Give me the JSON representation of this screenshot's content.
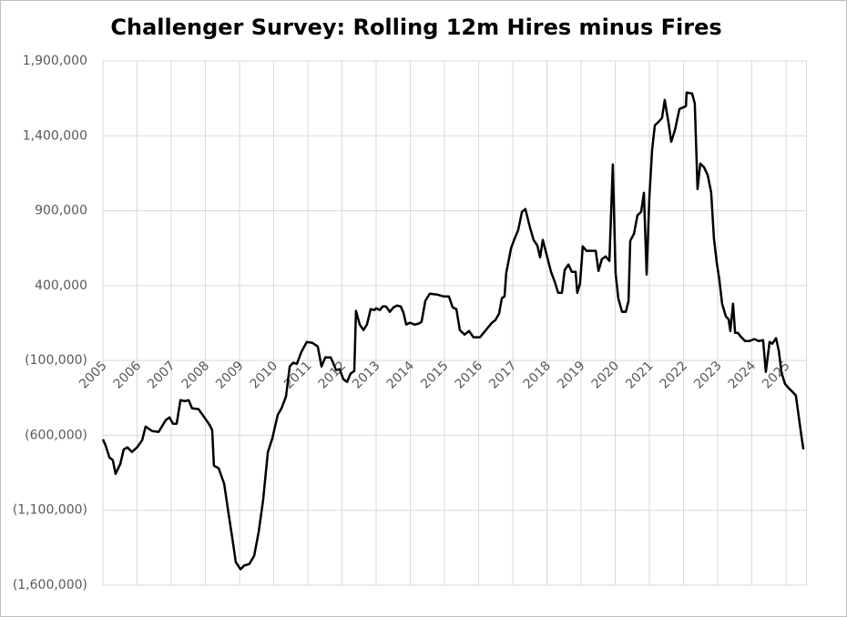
{
  "chart_data": {
    "type": "line",
    "title": "Challenger Survey: Rolling 12m Hires minus Fires",
    "x": [
      2005.0,
      2005.08,
      2005.19,
      2005.29,
      2005.37,
      2005.51,
      2005.61,
      2005.72,
      2005.85,
      2006.0,
      2006.15,
      2006.25,
      2006.44,
      2006.63,
      2006.84,
      2006.95,
      2007.05,
      2007.16,
      2007.27,
      2007.4,
      2007.51,
      2007.61,
      2007.8,
      2007.99,
      2008.12,
      2008.2,
      2008.25,
      2008.39,
      2008.55,
      2008.68,
      2008.79,
      2008.89,
      2009.03,
      2009.13,
      2009.29,
      2009.43,
      2009.56,
      2009.69,
      2009.83,
      2009.96,
      2010.12,
      2010.23,
      2010.36,
      2010.47,
      2010.57,
      2010.68,
      2010.81,
      2010.97,
      2011.13,
      2011.29,
      2011.4,
      2011.51,
      2011.67,
      2011.83,
      2011.93,
      2012.04,
      2012.15,
      2012.25,
      2012.36,
      2012.41,
      2012.52,
      2012.63,
      2012.73,
      2012.84,
      2012.95,
      2013.0,
      2013.11,
      2013.19,
      2013.29,
      2013.4,
      2013.51,
      2013.61,
      2013.72,
      2013.8,
      2013.88,
      2013.99,
      2014.13,
      2014.24,
      2014.33,
      2014.44,
      2014.57,
      2014.79,
      2014.97,
      2015.13,
      2015.24,
      2015.35,
      2015.45,
      2015.59,
      2015.72,
      2015.85,
      2016.04,
      2016.17,
      2016.28,
      2016.39,
      2016.49,
      2016.6,
      2016.68,
      2016.76,
      2016.81,
      2016.95,
      2017.05,
      2017.16,
      2017.27,
      2017.37,
      2017.51,
      2017.61,
      2017.72,
      2017.8,
      2017.88,
      2017.99,
      2018.12,
      2018.23,
      2018.33,
      2018.44,
      2018.52,
      2018.63,
      2018.73,
      2018.84,
      2018.89,
      2018.97,
      2019.05,
      2019.16,
      2019.32,
      2019.43,
      2019.51,
      2019.61,
      2019.72,
      2019.83,
      2019.93,
      2020.01,
      2020.09,
      2020.2,
      2020.31,
      2020.39,
      2020.44,
      2020.55,
      2020.65,
      2020.76,
      2020.84,
      2020.92,
      2021.0,
      2021.08,
      2021.16,
      2021.27,
      2021.37,
      2021.45,
      2021.56,
      2021.64,
      2021.75,
      2021.88,
      2022.07,
      2022.09,
      2022.25,
      2022.33,
      2022.41,
      2022.49,
      2022.6,
      2022.71,
      2022.81,
      2022.89,
      2022.97,
      2023.05,
      2023.13,
      2023.24,
      2023.32,
      2023.37,
      2023.45,
      2023.51,
      2023.59,
      2023.67,
      2023.8,
      2023.93,
      2024.07,
      2024.2,
      2024.33,
      2024.41,
      2024.52,
      2024.6,
      2024.71,
      2024.79,
      2024.87,
      2024.97,
      2025.08,
      2025.19,
      2025.29,
      2025.37,
      2025.45,
      2025.51
    ],
    "series": [
      {
        "color": "#000000",
        "values": [
          -626000,
          -668000,
          -747000,
          -765000,
          -857000,
          -790000,
          -693000,
          -680000,
          -711000,
          -680000,
          -632000,
          -541000,
          -571000,
          -577000,
          -498000,
          -480000,
          -522000,
          -522000,
          -365000,
          -371000,
          -365000,
          -419000,
          -425000,
          -486000,
          -529000,
          -565000,
          -802000,
          -820000,
          -923000,
          -1124000,
          -1288000,
          -1446000,
          -1494000,
          -1470000,
          -1458000,
          -1403000,
          -1245000,
          -1033000,
          -711000,
          -620000,
          -462000,
          -419000,
          -340000,
          -140000,
          -115000,
          -122000,
          -43000,
          24000,
          18000,
          -6000,
          -140000,
          -79000,
          -79000,
          -164000,
          -158000,
          -225000,
          -243000,
          -188000,
          -170000,
          231000,
          140000,
          103000,
          140000,
          243000,
          237000,
          249000,
          237000,
          261000,
          261000,
          225000,
          255000,
          267000,
          261000,
          219000,
          140000,
          152000,
          140000,
          146000,
          158000,
          298000,
          346000,
          340000,
          328000,
          328000,
          255000,
          243000,
          103000,
          73000,
          97000,
          55000,
          55000,
          91000,
          122000,
          152000,
          170000,
          213000,
          316000,
          328000,
          486000,
          650000,
          711000,
          772000,
          893000,
          911000,
          784000,
          705000,
          668000,
          589000,
          705000,
          608000,
          492000,
          425000,
          352000,
          352000,
          504000,
          541000,
          492000,
          492000,
          352000,
          413000,
          662000,
          632000,
          632000,
          632000,
          498000,
          577000,
          595000,
          565000,
          1209000,
          486000,
          316000,
          225000,
          225000,
          298000,
          699000,
          747000,
          869000,
          893000,
          1020000,
          474000,
          990000,
          1306000,
          1470000,
          1494000,
          1519000,
          1640000,
          1488000,
          1361000,
          1440000,
          1579000,
          1598000,
          1689000,
          1683000,
          1616000,
          1045000,
          1215000,
          1191000,
          1136000,
          1021000,
          717000,
          559000,
          437000,
          279000,
          194000,
          176000,
          97000,
          279000,
          85000,
          85000,
          61000,
          30000,
          30000,
          43000,
          30000,
          36000,
          -176000,
          24000,
          12000,
          49000,
          -36000,
          -182000,
          -255000,
          -285000,
          -309000,
          -334000,
          -468000,
          -601000,
          -693000
        ]
      }
    ],
    "xlim": [
      2005,
      2025.6
    ],
    "xticks": [
      2005,
      2006,
      2007,
      2008,
      2009,
      2010,
      2011,
      2012,
      2013,
      2014,
      2015,
      2016,
      2017,
      2018,
      2019,
      2020,
      2021,
      2022,
      2023,
      2024,
      2025
    ],
    "ylim": [
      -1600000,
      1900000
    ],
    "yticks": [
      {
        "value": -1600000,
        "label": "(1,600,000)"
      },
      {
        "value": -1100000,
        "label": "(1,100,000)"
      },
      {
        "value": -600000,
        "label": "(600,000)"
      },
      {
        "value": -100000,
        "label": "(100,000)"
      },
      {
        "value": 400000,
        "label": "400,000"
      },
      {
        "value": 900000,
        "label": "900,000"
      },
      {
        "value": 1400000,
        "label": "1,400,000"
      },
      {
        "value": 1900000,
        "label": "1,900,000"
      }
    ],
    "grid": true
  }
}
